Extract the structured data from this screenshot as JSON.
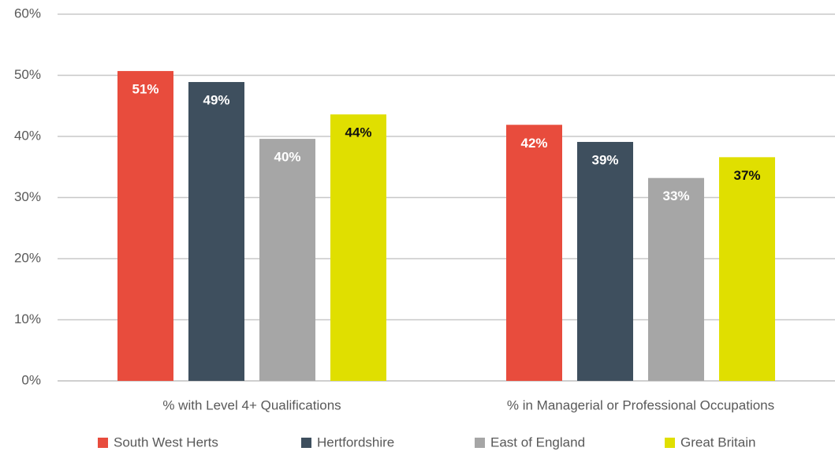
{
  "chart_data": {
    "type": "bar",
    "categories": [
      "% with Level 4+ Qualifications",
      "% in Managerial or Professional Occupations"
    ],
    "series": [
      {
        "name": "South West Herts",
        "color": "#e84c3d",
        "values": [
          50.7,
          41.9
        ],
        "value_labels": [
          "51%",
          "42%"
        ]
      },
      {
        "name": "Hertfordshire",
        "color": "#3e4f5e",
        "values": [
          48.9,
          39.1
        ],
        "value_labels": [
          "49%",
          "39%"
        ]
      },
      {
        "name": "East of England",
        "color": "#a6a6a6",
        "values": [
          39.6,
          33.2
        ],
        "value_labels": [
          "40%",
          "33%"
        ]
      },
      {
        "name": "Great Britain",
        "color": "#e0df00",
        "values": [
          43.6,
          36.6
        ],
        "value_labels": [
          "44%",
          "37%"
        ]
      }
    ],
    "ylim": [
      0,
      60
    ],
    "yticks": [
      {
        "value": 0,
        "label": "0%"
      },
      {
        "value": 10,
        "label": "10%"
      },
      {
        "value": 20,
        "label": "20%"
      },
      {
        "value": 30,
        "label": "30%"
      },
      {
        "value": 40,
        "label": "40%"
      },
      {
        "value": 50,
        "label": "50%"
      },
      {
        "value": 60,
        "label": "60%"
      }
    ],
    "grid": true,
    "legend": "bottom"
  }
}
